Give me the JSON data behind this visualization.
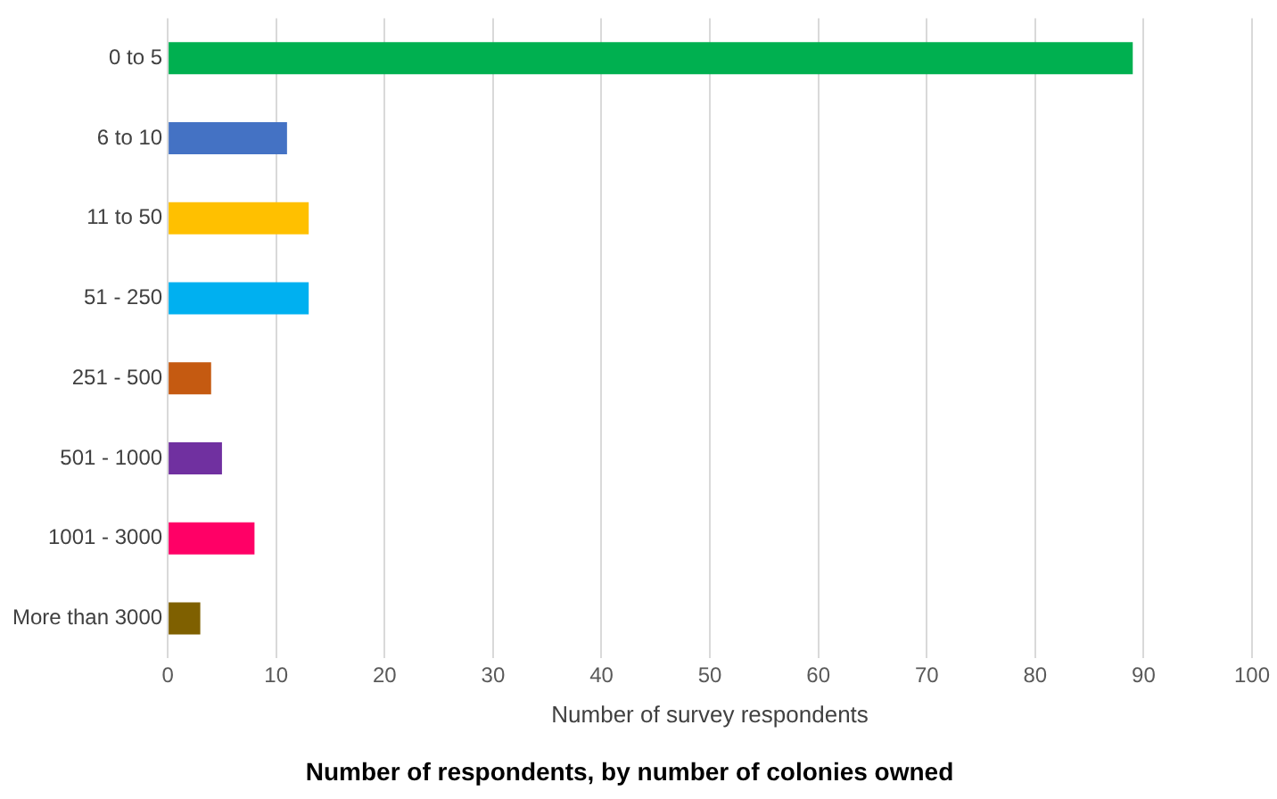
{
  "chart_data": {
    "type": "bar",
    "orientation": "horizontal",
    "title": "Number of respondents, by number of colonies owned",
    "xlabel": "Number of survey respondents",
    "categories": [
      "0 to 5",
      "6 to 10",
      "11 to 50",
      "51 - 250",
      "251 - 500",
      "501 - 1000",
      "1001 - 3000",
      "More than 3000"
    ],
    "values": [
      89,
      11,
      13,
      13,
      4,
      5,
      8,
      3
    ],
    "colors": [
      "#00b050",
      "#4472c4",
      "#ffc000",
      "#00b0f0",
      "#c55a11",
      "#7030a0",
      "#ff0066",
      "#7f6000"
    ],
    "xlim": [
      0,
      100
    ],
    "xticks": [
      0,
      10,
      20,
      30,
      40,
      50,
      60,
      70,
      80,
      90,
      100
    ],
    "grid": "x"
  }
}
